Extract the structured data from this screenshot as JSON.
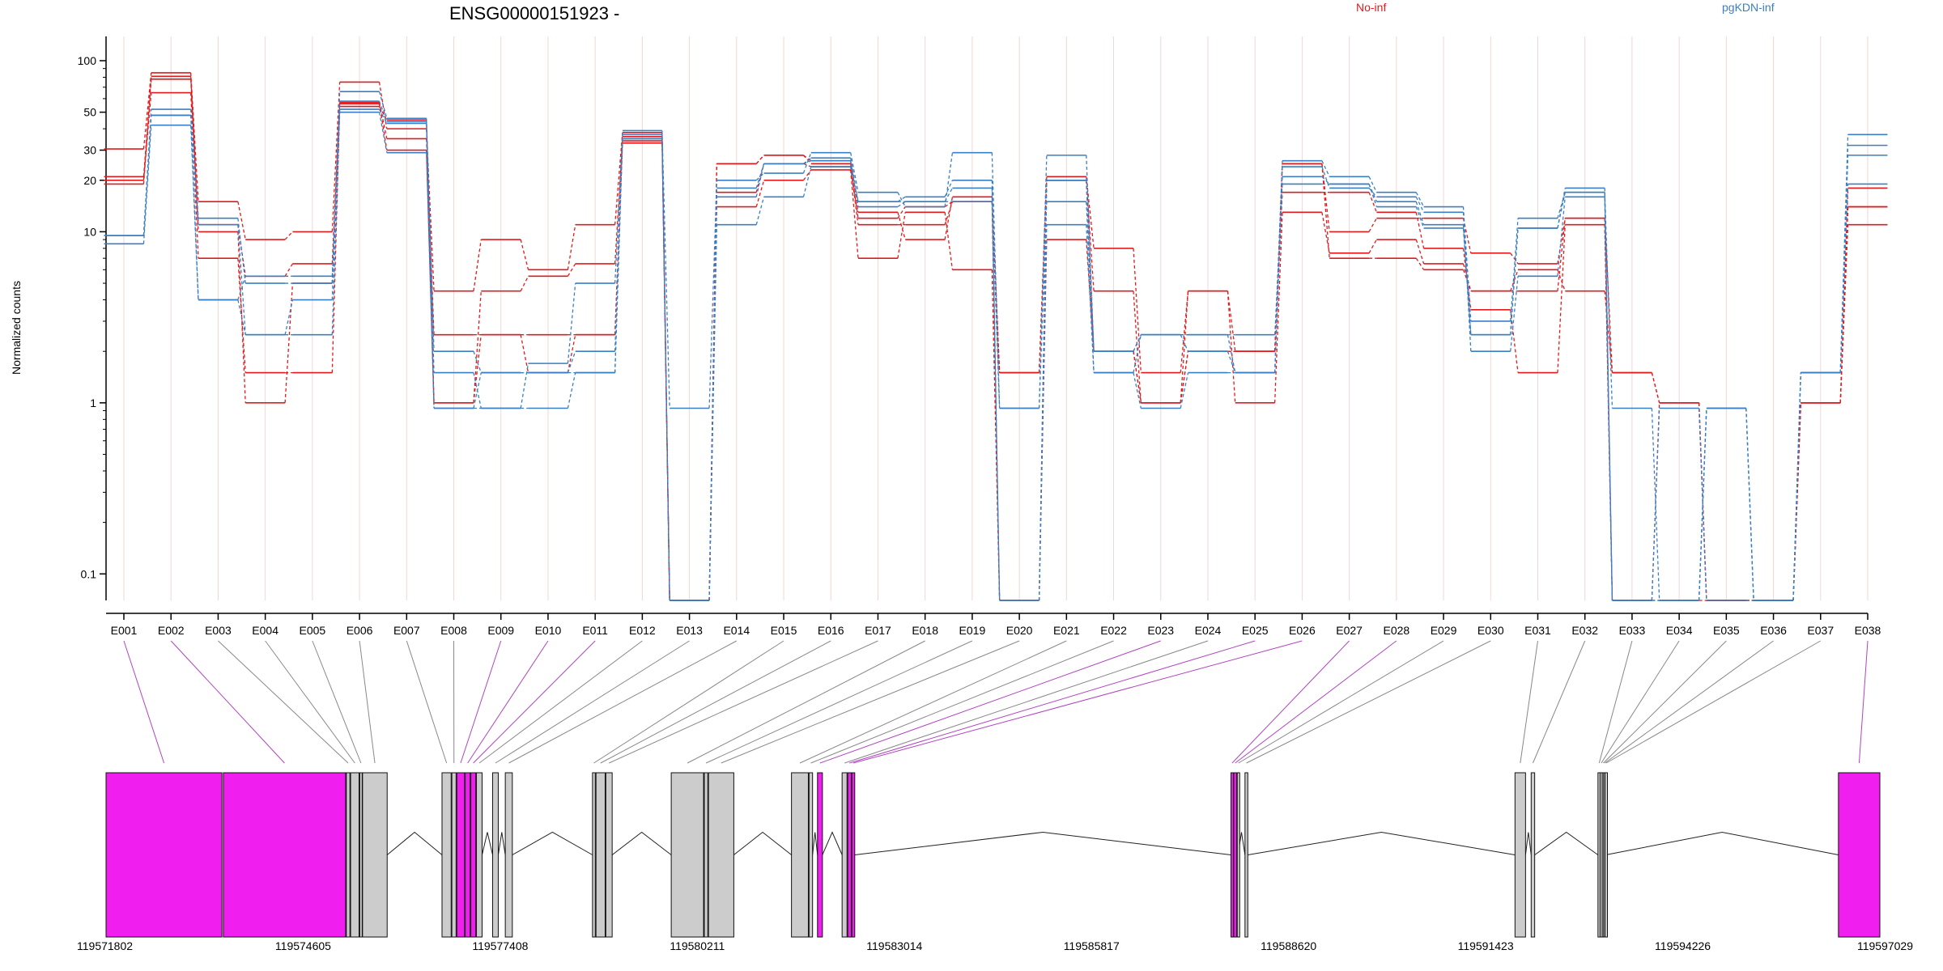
{
  "chart_data": {
    "type": "line",
    "title": "ENSG00000151923 -",
    "ylabel": "Normalized counts",
    "yscale": "log",
    "ylim": [
      0.07,
      100
    ],
    "yticks": [
      "100",
      "50",
      "30",
      "20",
      "10",
      "1",
      "0.1"
    ],
    "categories": [
      "E001",
      "E002",
      "E003",
      "E004",
      "E005",
      "E006",
      "E007",
      "E008",
      "E009",
      "E010",
      "E011",
      "E012",
      "E013",
      "E014",
      "E015",
      "E016",
      "E017",
      "E018",
      "E019",
      "E020",
      "E021",
      "E022",
      "E023",
      "E024",
      "E025",
      "E026",
      "E027",
      "E028",
      "E029",
      "E030",
      "E031",
      "E032",
      "E033",
      "E034",
      "E035",
      "E036",
      "E037",
      "E038"
    ],
    "legend": [
      {
        "name": "No-inf",
        "color": "#e31a1c"
      },
      {
        "name": "pgKDN-inf",
        "color": "#3a7fc4"
      }
    ],
    "series": [
      {
        "group": "No-inf",
        "values": [
          30.5,
          85,
          15,
          9,
          10,
          75,
          40,
          4.5,
          9,
          6,
          11,
          38,
          0.07,
          25,
          28,
          26,
          13,
          9,
          16,
          1.5,
          21,
          8,
          1.5,
          4.5,
          2.0,
          25,
          10,
          12,
          12,
          7.5,
          6.5,
          12,
          1.5,
          1.0,
          0.07,
          0.07,
          1.0,
          14
        ]
      },
      {
        "group": "No-inf",
        "values": [
          21,
          81,
          11,
          5.5,
          6.5,
          57,
          35,
          2.5,
          2.5,
          2.5,
          2.5,
          36,
          0.07,
          17,
          25,
          24,
          11,
          11,
          15,
          0.07,
          20,
          4.5,
          1.0,
          4.5,
          1.0,
          13,
          7.5,
          9,
          6.5,
          4.5,
          4.5,
          12,
          0.07,
          1.0,
          0.07,
          0.07,
          1.0,
          11
        ]
      },
      {
        "group": "No-inf",
        "values": [
          19,
          78,
          10,
          1.0,
          5.0,
          56,
          30,
          1.0,
          4.5,
          5.5,
          6.5,
          34,
          0.07,
          14,
          20,
          23,
          7,
          13,
          6,
          0.07,
          9,
          2.0,
          1.0,
          2.0,
          2.0,
          17,
          17,
          13,
          8,
          3.5,
          1.5,
          11,
          0.07,
          0.07,
          0.07,
          0.07,
          1.0,
          18
        ]
      },
      {
        "group": "No-inf",
        "values": [
          20,
          65,
          7,
          1.5,
          1.5,
          54,
          45,
          1.0,
          2.5,
          1.5,
          2.5,
          33,
          0.07,
          25,
          28,
          25,
          12,
          14,
          15,
          1.5,
          20,
          2.0,
          1.0,
          2.0,
          2.0,
          25,
          7,
          7,
          6,
          4.5,
          6,
          4.5,
          1.5,
          1.0,
          0.07,
          0.07,
          1.0,
          14
        ]
      },
      {
        "group": "pgKDN-inf",
        "values": [
          9.5,
          52,
          12,
          5.0,
          5.0,
          66,
          46,
          2.0,
          1.5,
          1.5,
          2.0,
          39,
          0.93,
          20,
          22,
          29,
          17,
          14,
          29,
          0.93,
          28,
          2.0,
          2.5,
          2.5,
          1.5,
          26,
          21,
          17,
          14,
          3.0,
          12,
          17,
          0.93,
          0.07,
          0.93,
          0.07,
          1.5,
          37
        ]
      },
      {
        "group": "pgKDN-inf",
        "values": [
          9.5,
          48,
          11,
          2.5,
          4.0,
          58,
          44,
          1.5,
          0.93,
          1.7,
          5.0,
          37,
          0.07,
          16,
          25,
          27,
          15,
          16,
          20,
          0.07,
          20,
          1.5,
          0.93,
          1.5,
          1.5,
          21,
          19,
          15,
          11,
          2.5,
          10.5,
          18,
          0.07,
          0.93,
          0.07,
          0.07,
          1.5,
          28
        ]
      },
      {
        "group": "pgKDN-inf",
        "values": [
          8.5,
          42,
          4.0,
          2.5,
          2.5,
          50,
          29,
          0.93,
          1.5,
          1.5,
          1.5,
          35,
          0.07,
          11,
          16,
          24,
          15,
          15,
          18,
          0.07,
          11,
          1.5,
          2.5,
          2.5,
          2.5,
          19,
          19,
          14,
          10.5,
          2.5,
          10.5,
          17,
          0.07,
          0.07,
          0.93,
          0.07,
          1.5,
          19
        ]
      },
      {
        "group": "pgKDN-inf",
        "values": [
          9.5,
          48,
          4.0,
          5.5,
          5.5,
          52,
          43,
          0.93,
          0.93,
          0.93,
          1.5,
          35,
          0.07,
          18,
          25,
          26,
          14,
          15,
          15,
          0.93,
          15,
          2.0,
          2.5,
          2.0,
          1.5,
          24,
          18,
          16,
          13,
          2.0,
          5.5,
          16,
          0.07,
          0.07,
          0.93,
          0.07,
          1.5,
          32
        ]
      }
    ],
    "gene_model": {
      "coordinates": [
        "119571802",
        "119574605",
        "119577408",
        "119580211",
        "119583014",
        "119585817",
        "119588620",
        "119591423",
        "119594226",
        "119597029"
      ],
      "highlight_color": "#f01ff0",
      "exon_color": "#cccccc",
      "exons": [
        {
          "id": "E001",
          "start": 119571802,
          "end": 119573450,
          "significant": true
        },
        {
          "id": "E002",
          "start": 119573470,
          "end": 119575210,
          "significant": true
        },
        {
          "id": "E003",
          "start": 119575220,
          "end": 119575270,
          "significant": false
        },
        {
          "id": "E004",
          "start": 119575280,
          "end": 119575400,
          "significant": false
        },
        {
          "id": "E005",
          "start": 119575410,
          "end": 119575440,
          "significant": false
        },
        {
          "id": "E006",
          "start": 119575450,
          "end": 119575800,
          "significant": false
        },
        {
          "id": "E007",
          "start": 119576580,
          "end": 119576710,
          "significant": false
        },
        {
          "id": "E008",
          "start": 119576720,
          "end": 119576780,
          "significant": false
        },
        {
          "id": "E009",
          "start": 119576790,
          "end": 119576900,
          "significant": true
        },
        {
          "id": "E010",
          "start": 119576910,
          "end": 119576980,
          "significant": true
        },
        {
          "id": "E011",
          "start": 119576990,
          "end": 119577060,
          "significant": true
        },
        {
          "id": "E012",
          "start": 119577070,
          "end": 119577150,
          "significant": false
        },
        {
          "id": "E013",
          "start": 119577300,
          "end": 119577380,
          "significant": false
        },
        {
          "id": "E014",
          "start": 119577480,
          "end": 119577580,
          "significant": false
        },
        {
          "id": "E015",
          "start": 119578720,
          "end": 119578760,
          "significant": false
        },
        {
          "id": "E016",
          "start": 119578770,
          "end": 119578900,
          "significant": false
        },
        {
          "id": "E017",
          "start": 119578910,
          "end": 119579000,
          "significant": false
        },
        {
          "id": "E018",
          "start": 119579840,
          "end": 119580300,
          "significant": false
        },
        {
          "id": "E019",
          "start": 119580310,
          "end": 119580360,
          "significant": false
        },
        {
          "id": "E020",
          "start": 119580370,
          "end": 119580730,
          "significant": false
        },
        {
          "id": "E021",
          "start": 119581550,
          "end": 119581790,
          "significant": false
        },
        {
          "id": "E022",
          "start": 119581800,
          "end": 119581850,
          "significant": false
        },
        {
          "id": "E023",
          "start": 119581920,
          "end": 119581990,
          "significant": true
        },
        {
          "id": "E024",
          "start": 119582270,
          "end": 119582340,
          "significant": false
        },
        {
          "id": "E025",
          "start": 119582350,
          "end": 119582400,
          "significant": true
        },
        {
          "id": "E026",
          "start": 119582410,
          "end": 119582450,
          "significant": true
        },
        {
          "id": "E027",
          "start": 119587800,
          "end": 119587830,
          "significant": true
        },
        {
          "id": "E028",
          "start": 119587840,
          "end": 119587880,
          "significant": true
        },
        {
          "id": "E029",
          "start": 119587890,
          "end": 119587900,
          "significant": false
        },
        {
          "id": "E030",
          "start": 119588000,
          "end": 119588040,
          "significant": false
        },
        {
          "id": "E031",
          "start": 119591840,
          "end": 119591990,
          "significant": false
        },
        {
          "id": "E032",
          "start": 119592070,
          "end": 119592120,
          "significant": false
        },
        {
          "id": "E033",
          "start": 119593020,
          "end": 119593040,
          "significant": false
        },
        {
          "id": "E034",
          "start": 119593050,
          "end": 119593070,
          "significant": false
        },
        {
          "id": "E035",
          "start": 119593080,
          "end": 119593090,
          "significant": false
        },
        {
          "id": "E036",
          "start": 119593100,
          "end": 119593110,
          "significant": false
        },
        {
          "id": "E037",
          "start": 119593120,
          "end": 119593130,
          "significant": false
        },
        {
          "id": "E038",
          "start": 119596440,
          "end": 119597029,
          "significant": true
        }
      ]
    }
  }
}
